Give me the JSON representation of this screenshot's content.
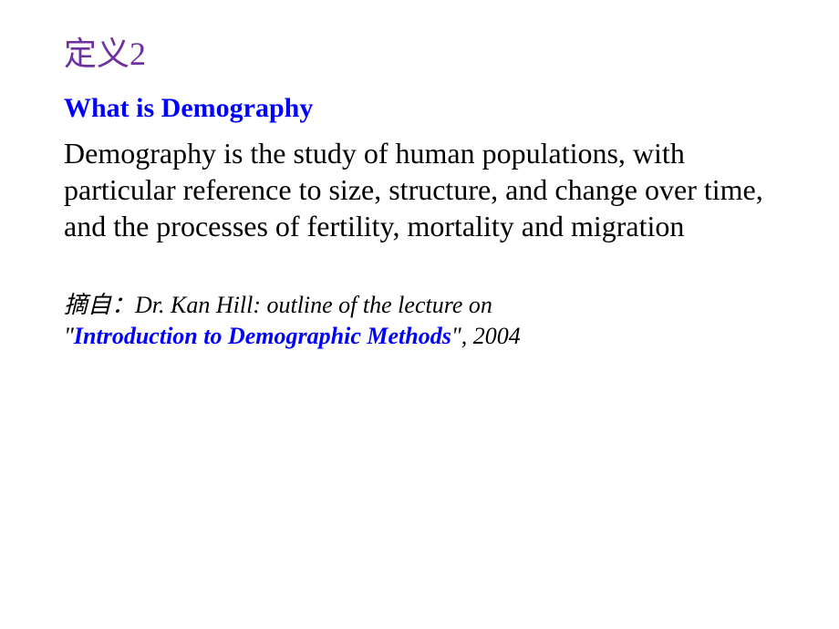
{
  "slide": {
    "title": "定义2",
    "subtitle": "What is Demography",
    "body": "Demography is the study of human populations, with particular reference to size, structure, and change over time, and the processes of fertility, mortality and migration",
    "citation": {
      "prefix": "摘自：",
      "author_text": "Dr. Kan Hill: outline of the lecture on ",
      "quote_open": "\"",
      "book_title": "Introduction to Demographic Methods",
      "quote_close": "\"",
      "suffix": ", 2004"
    }
  },
  "colors": {
    "title_color": "#7030a0",
    "subtitle_color": "#0000ff",
    "body_color": "#000000",
    "citation_book_color": "#0000ff",
    "background": "#ffffff"
  },
  "typography": {
    "title_fontsize": 36,
    "subtitle_fontsize": 30,
    "body_fontsize": 32,
    "citation_fontsize": 26,
    "font_family": "Times New Roman"
  }
}
